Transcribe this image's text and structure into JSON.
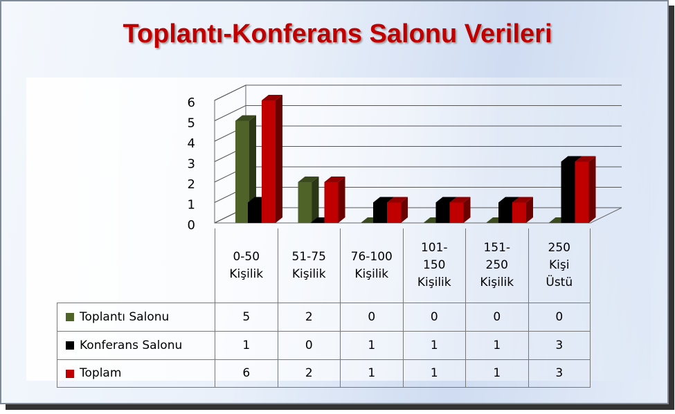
{
  "chart_data": {
    "type": "bar3d",
    "title": "Toplantı-Konferans Salonu Verileri",
    "categories": [
      "0-50 Kişilik",
      "51-75 Kişilik",
      "76-100 Kişilik",
      "101-150 Kişilik",
      "151-250 Kişilik",
      "250 Kişi Üstü"
    ],
    "series": [
      {
        "name": "Toplantı Salonu",
        "color": "#4f6228",
        "values": [
          5,
          2,
          0,
          0,
          0,
          0
        ]
      },
      {
        "name": "Konferans Salonu",
        "color": "#000000",
        "values": [
          1,
          0,
          1,
          1,
          1,
          3
        ]
      },
      {
        "name": "Toplam",
        "color": "#c00000",
        "values": [
          6,
          2,
          1,
          1,
          1,
          3
        ]
      }
    ],
    "ylim": [
      0,
      6
    ],
    "yticks": [
      0,
      1,
      2,
      3,
      4,
      5,
      6
    ],
    "grid": true
  }
}
